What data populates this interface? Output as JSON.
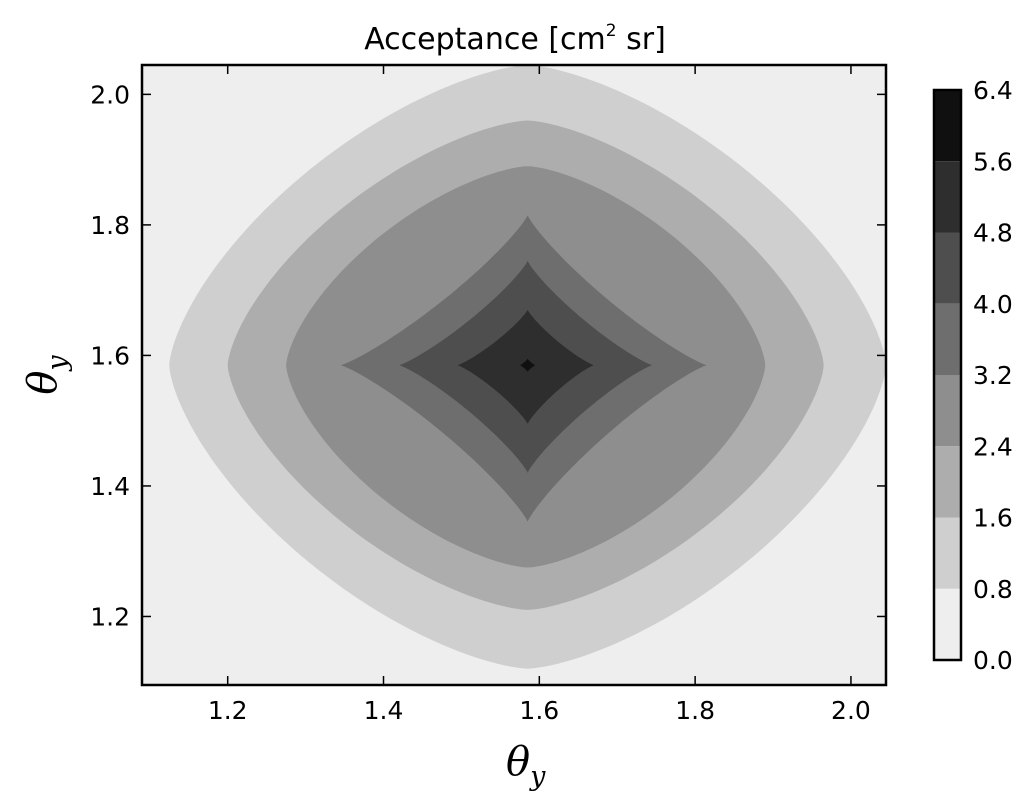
{
  "chart_data": {
    "type": "heatmap",
    "subtype": "filled-contour",
    "title": {
      "main": "Acceptance [cm",
      "sup": "2",
      "tail": " sr]"
    },
    "xlabel": {
      "symbol": "θ",
      "sub": "y"
    },
    "ylabel": {
      "symbol": "θ",
      "sub": "y"
    },
    "xlim": [
      1.09,
      2.045
    ],
    "ylim": [
      1.095,
      2.045
    ],
    "xticks": [
      1.2,
      1.4,
      1.6,
      1.8,
      2.0
    ],
    "yticks": [
      1.2,
      1.4,
      1.6,
      1.8,
      2.0
    ],
    "xtick_labels": [
      "1.2",
      "1.4",
      "1.6",
      "1.8",
      "2.0"
    ],
    "ytick_labels": [
      "1.2",
      "1.4",
      "1.6",
      "1.8",
      "2.0"
    ],
    "grid": false,
    "colormap": "greys",
    "center": {
      "x": 1.585,
      "y": 1.585
    },
    "levels": [
      0.0,
      0.8,
      1.6,
      2.4,
      3.2,
      4.0,
      4.8,
      5.6,
      6.4
    ],
    "level_labels": [
      "0.0",
      "0.8",
      "1.6",
      "2.4",
      "3.2",
      "4.0",
      "4.8",
      "5.6",
      "6.4"
    ],
    "band_colors": [
      "#eeeeee",
      "#cfcfcf",
      "#adadad",
      "#8e8e8e",
      "#6e6e6e",
      "#4e4e4e",
      "#2e2e2e",
      "#101010"
    ],
    "contours": [
      {
        "level": 0.8,
        "x_min": 1.125,
        "x_max": 2.045,
        "y_min": 1.12,
        "y_max": 2.045,
        "shape": "round"
      },
      {
        "level": 1.6,
        "x_min": 1.2,
        "x_max": 1.965,
        "y_min": 1.21,
        "y_max": 1.96,
        "shape": "round"
      },
      {
        "level": 2.4,
        "x_min": 1.275,
        "x_max": 1.89,
        "y_min": 1.275,
        "y_max": 1.89,
        "shape": "round"
      },
      {
        "level": 3.2,
        "x_min": 1.345,
        "x_max": 1.815,
        "y_min": 1.345,
        "y_max": 1.815,
        "shape": "diamond"
      },
      {
        "level": 4.0,
        "x_min": 1.42,
        "x_max": 1.745,
        "y_min": 1.42,
        "y_max": 1.745,
        "shape": "diamond"
      },
      {
        "level": 4.8,
        "x_min": 1.495,
        "x_max": 1.67,
        "y_min": 1.495,
        "y_max": 1.67,
        "shape": "diamond"
      },
      {
        "level": 5.6,
        "x_min": 1.575,
        "x_max": 1.595,
        "y_min": 1.575,
        "y_max": 1.595,
        "shape": "diamond"
      }
    ]
  }
}
